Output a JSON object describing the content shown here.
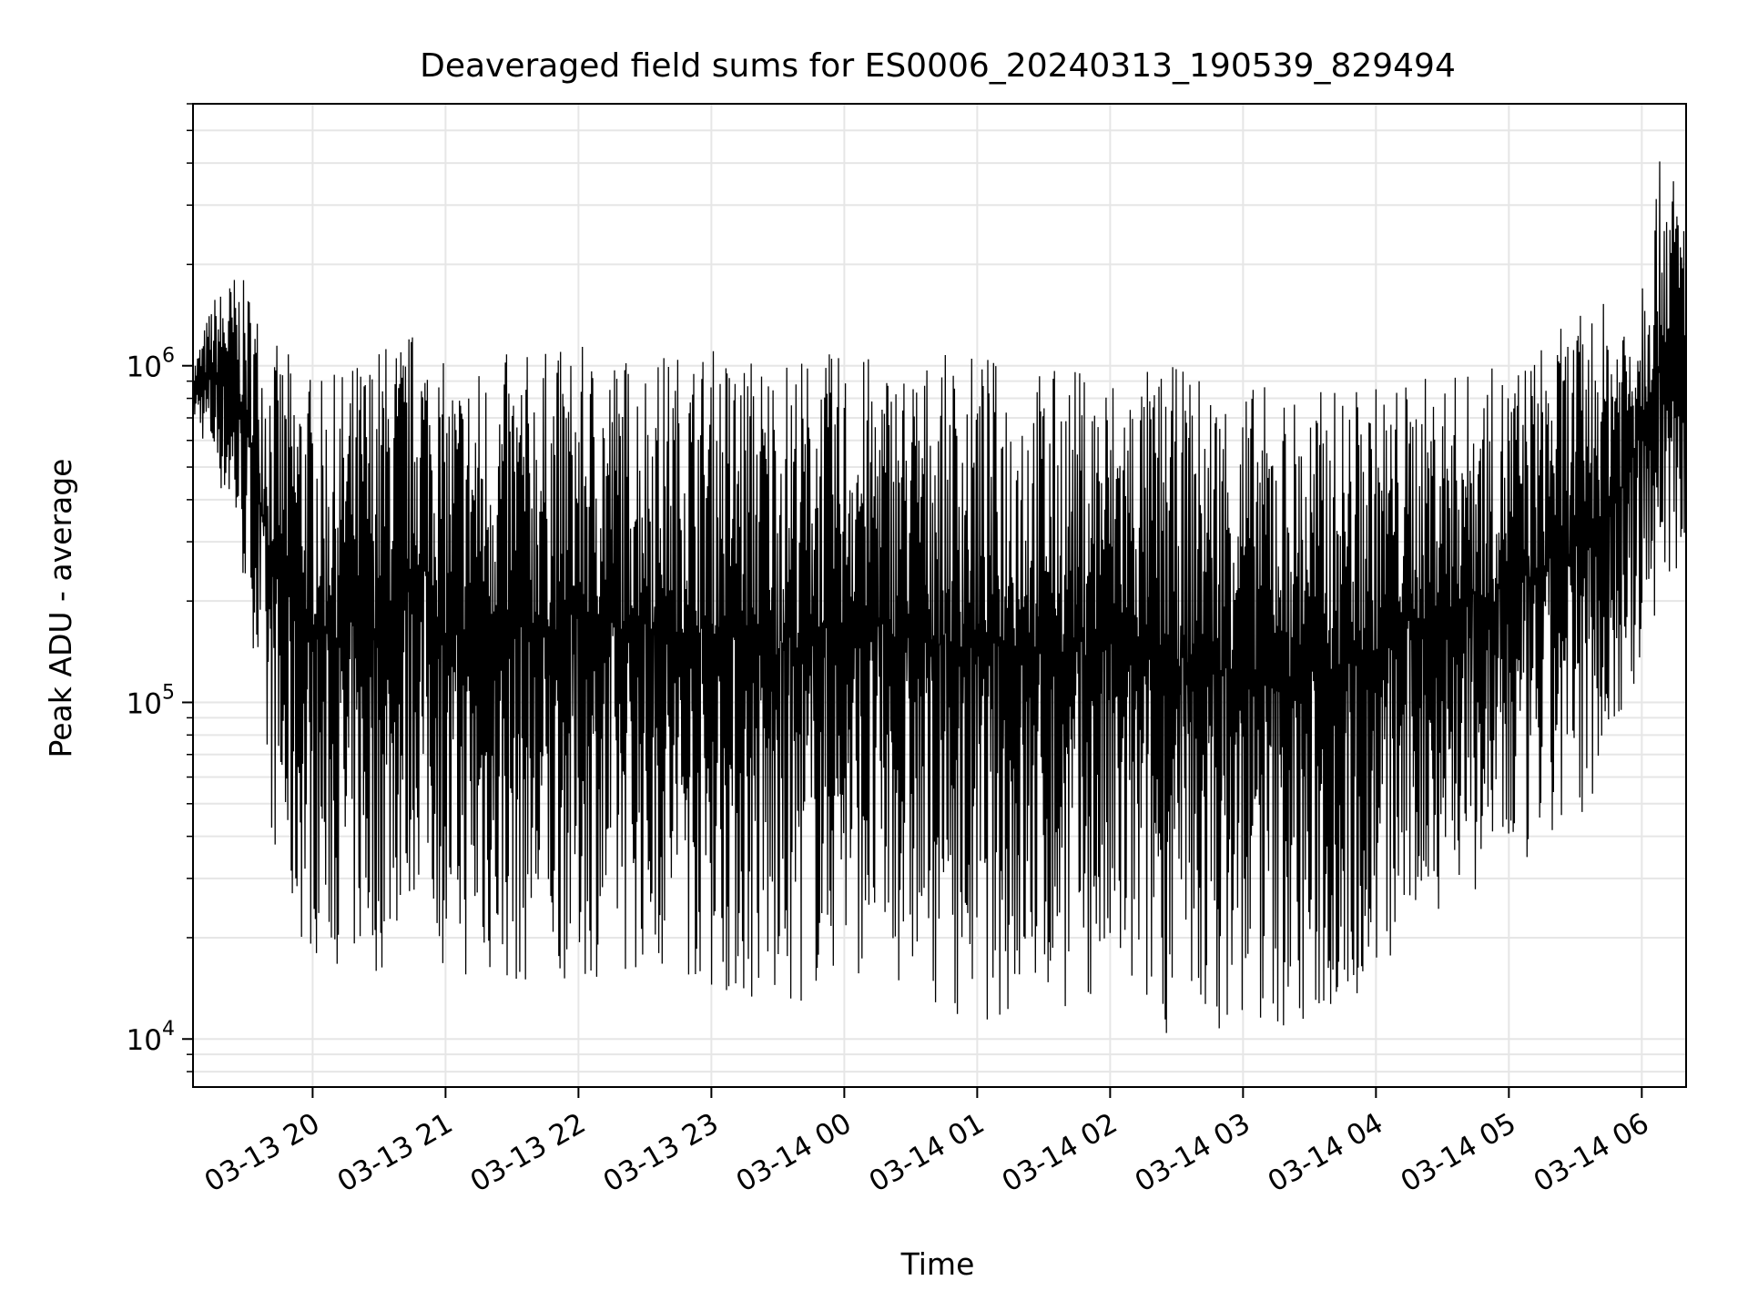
{
  "chart_data": {
    "type": "line",
    "title": "Deaveraged field sums for ES0006_20240313_190539_829494",
    "xlabel": "Time",
    "ylabel": "Peak ADU - average",
    "y_scale": "log",
    "ylim": [
      7200,
      6000000
    ],
    "xlim": [
      "2024-03-13 19:06",
      "2024-03-14 06:20"
    ],
    "grid": true,
    "line_color": "#000000",
    "grid_color": "#e6e6e6",
    "x_ticks": [
      {
        "t": "2024-03-13 20:00",
        "label": "03-13 20"
      },
      {
        "t": "2024-03-13 21:00",
        "label": "03-13 21"
      },
      {
        "t": "2024-03-13 22:00",
        "label": "03-13 22"
      },
      {
        "t": "2024-03-13 23:00",
        "label": "03-13 23"
      },
      {
        "t": "2024-03-14 00:00",
        "label": "03-14 00"
      },
      {
        "t": "2024-03-14 01:00",
        "label": "03-14 01"
      },
      {
        "t": "2024-03-14 02:00",
        "label": "03-14 02"
      },
      {
        "t": "2024-03-14 03:00",
        "label": "03-14 03"
      },
      {
        "t": "2024-03-14 04:00",
        "label": "03-14 04"
      },
      {
        "t": "2024-03-14 05:00",
        "label": "03-14 05"
      },
      {
        "t": "2024-03-14 06:00",
        "label": "03-14 06"
      }
    ],
    "y_ticks": [
      {
        "value": 10000,
        "base": "10",
        "exp": "4"
      },
      {
        "value": 100000,
        "base": "10",
        "exp": "5"
      },
      {
        "value": 1000000,
        "base": "10",
        "exp": "6"
      }
    ],
    "series": [
      {
        "envelope": [
          {
            "t": "2024-03-13 19:06",
            "low": 700000,
            "high": 1000000
          },
          {
            "t": "2024-03-13 19:15",
            "low": 500000,
            "high": 1600000
          },
          {
            "t": "2024-03-13 19:25",
            "low": 300000,
            "high": 1900000
          },
          {
            "t": "2024-03-13 19:33",
            "low": 150000,
            "high": 1700000
          },
          {
            "t": "2024-03-13 19:40",
            "low": 45000,
            "high": 1200000
          },
          {
            "t": "2024-03-13 19:50",
            "low": 20000,
            "high": 1100000
          },
          {
            "t": "2024-03-13 20:05",
            "low": 17000,
            "high": 900000
          },
          {
            "t": "2024-03-13 20:30",
            "low": 15000,
            "high": 1200000
          },
          {
            "t": "2024-03-13 20:50",
            "low": 30000,
            "high": 1350000
          },
          {
            "t": "2024-03-13 21:00",
            "low": 15000,
            "high": 1000000
          },
          {
            "t": "2024-03-13 21:30",
            "low": 14000,
            "high": 1100000
          },
          {
            "t": "2024-03-13 22:00",
            "low": 15000,
            "high": 1150000
          },
          {
            "t": "2024-03-13 22:30",
            "low": 16000,
            "high": 1100000
          },
          {
            "t": "2024-03-13 23:00",
            "low": 14000,
            "high": 1150000
          },
          {
            "t": "2024-03-13 23:30",
            "low": 11000,
            "high": 1100000
          },
          {
            "t": "2024-03-14 00:00",
            "low": 16000,
            "high": 1100000
          },
          {
            "t": "2024-03-14 00:30",
            "low": 14000,
            "high": 1050000
          },
          {
            "t": "2024-03-14 01:00",
            "low": 11000,
            "high": 1100000
          },
          {
            "t": "2024-03-14 01:30",
            "low": 12000,
            "high": 1000000
          },
          {
            "t": "2024-03-14 02:00",
            "low": 12500,
            "high": 1000000
          },
          {
            "t": "2024-03-14 02:30",
            "low": 10000,
            "high": 1000000
          },
          {
            "t": "2024-03-14 03:00",
            "low": 11000,
            "high": 900000
          },
          {
            "t": "2024-03-14 03:30",
            "low": 10000,
            "high": 850000
          },
          {
            "t": "2024-03-14 04:00",
            "low": 14000,
            "high": 900000
          },
          {
            "t": "2024-03-14 04:30",
            "low": 25000,
            "high": 950000
          },
          {
            "t": "2024-03-14 05:00",
            "low": 28000,
            "high": 1000000
          },
          {
            "t": "2024-03-14 05:30",
            "low": 40000,
            "high": 1400000
          },
          {
            "t": "2024-03-14 05:55",
            "low": 100000,
            "high": 1700000
          },
          {
            "t": "2024-03-14 06:10",
            "low": 200000,
            "high": 4600000
          },
          {
            "t": "2024-03-14 06:20",
            "low": 250000,
            "high": 3000000
          }
        ]
      }
    ]
  }
}
